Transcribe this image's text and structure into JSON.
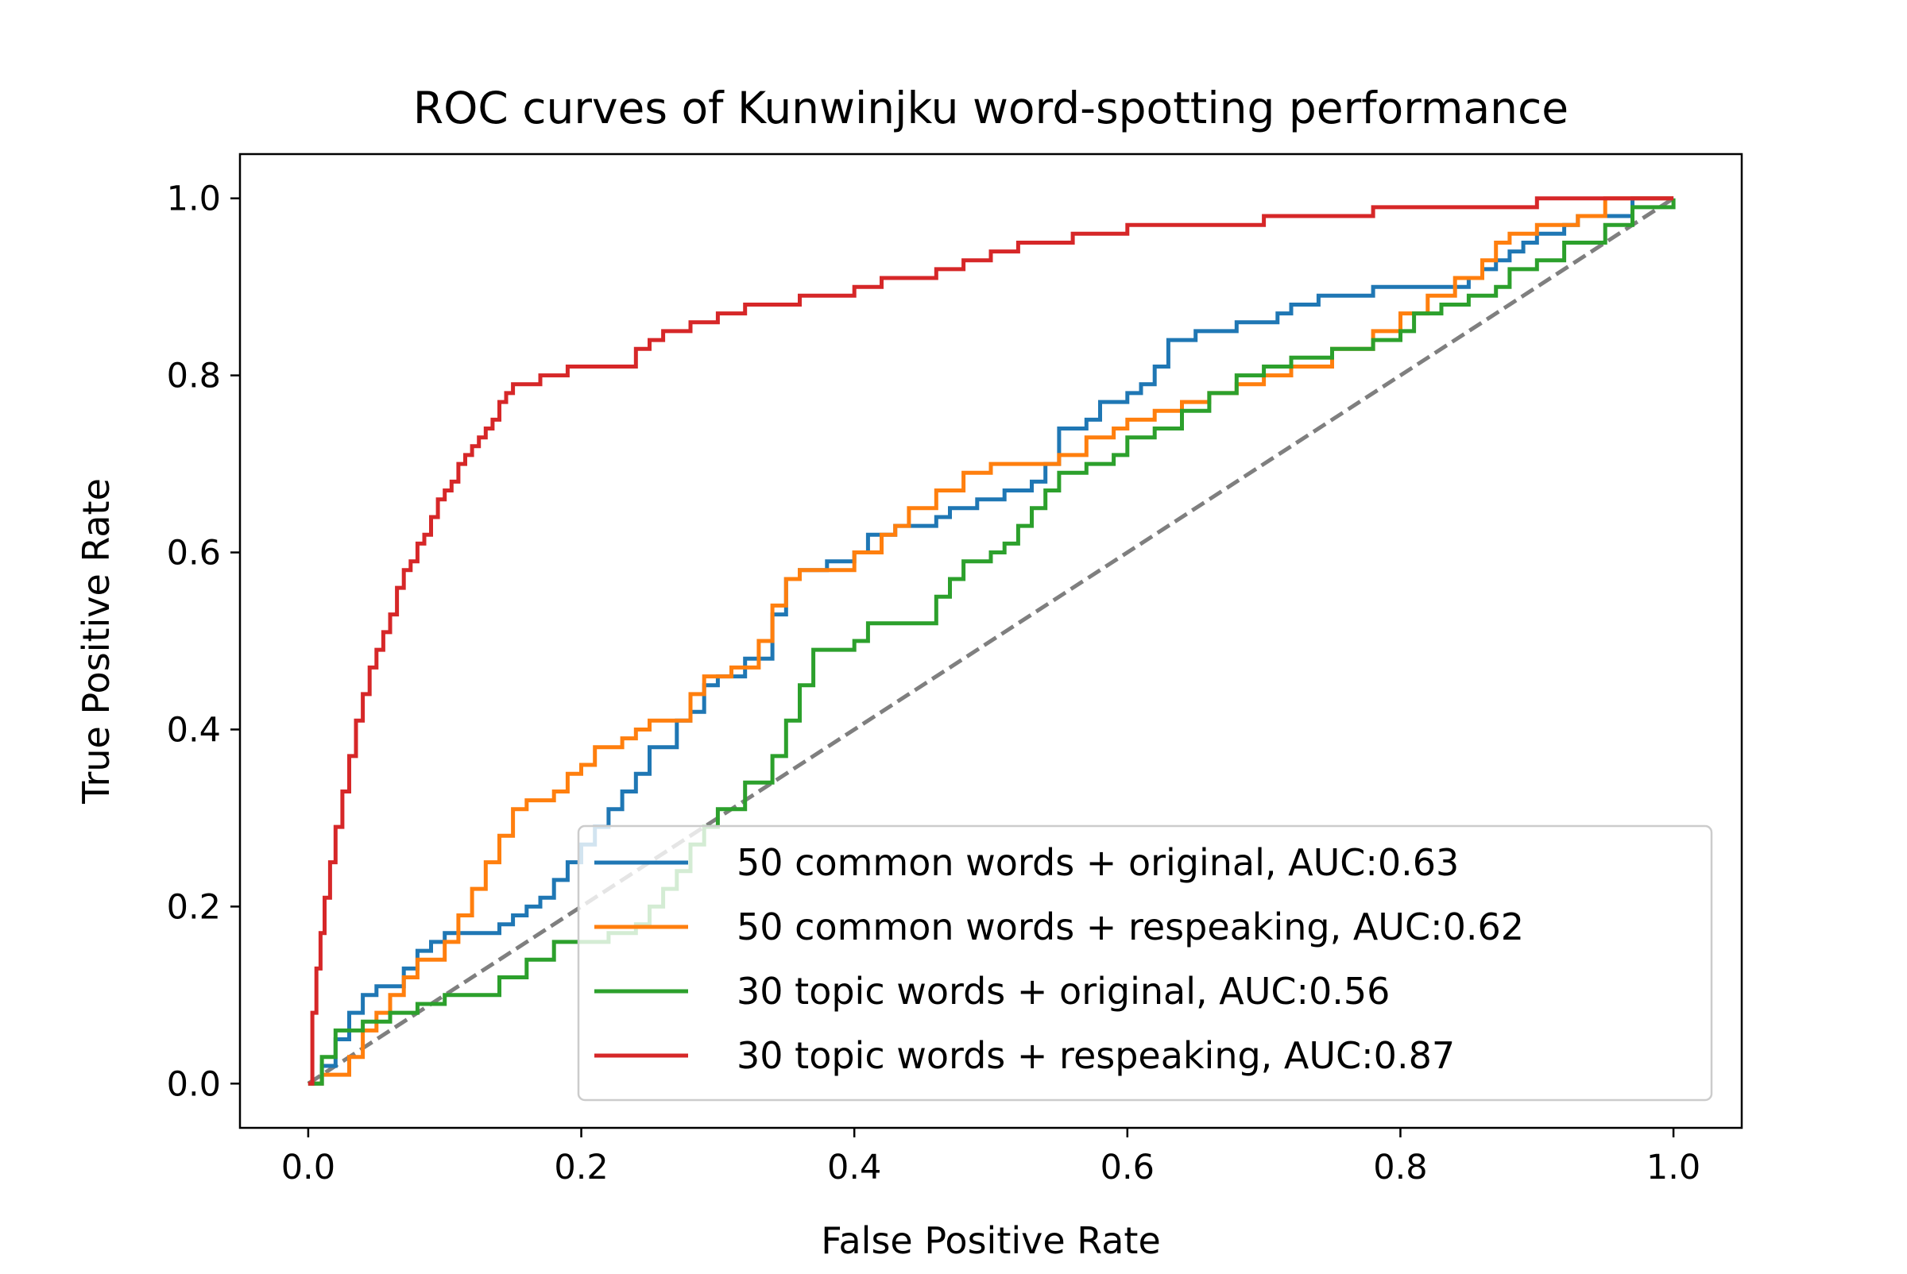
{
  "chart_data": {
    "type": "line",
    "title": "ROC curves of Kunwinjku word-spotting performance",
    "xlabel": "False Positive Rate",
    "ylabel": "True Positive Rate",
    "xlim": [
      -0.05,
      1.05
    ],
    "ylim": [
      -0.05,
      1.05
    ],
    "xticks": [
      "0.0",
      "0.2",
      "0.4",
      "0.6",
      "0.8",
      "1.0"
    ],
    "yticks": [
      "0.0",
      "0.2",
      "0.4",
      "0.6",
      "0.8",
      "1.0"
    ],
    "grid": false,
    "legend_position": "lower-right",
    "diagonal": {
      "x": [
        0,
        1
      ],
      "y": [
        0,
        1
      ],
      "color": "#7f7f7f",
      "style": "dashed"
    },
    "series": [
      {
        "name": "50 common words + original, AUC:0.63",
        "color": "#1f77b4",
        "x": [
          0,
          0.01,
          0.02,
          0.03,
          0.04,
          0.05,
          0.07,
          0.08,
          0.09,
          0.1,
          0.12,
          0.14,
          0.15,
          0.16,
          0.17,
          0.18,
          0.19,
          0.2,
          0.21,
          0.22,
          0.23,
          0.24,
          0.25,
          0.27,
          0.28,
          0.29,
          0.3,
          0.32,
          0.34,
          0.35,
          0.36,
          0.38,
          0.4,
          0.41,
          0.43,
          0.45,
          0.46,
          0.47,
          0.49,
          0.51,
          0.53,
          0.54,
          0.55,
          0.57,
          0.58,
          0.6,
          0.61,
          0.62,
          0.63,
          0.65,
          0.68,
          0.71,
          0.72,
          0.74,
          0.78,
          0.8,
          0.83,
          0.84,
          0.85,
          0.86,
          0.87,
          0.88,
          0.89,
          0.9,
          0.92,
          0.93,
          0.97,
          1.0
        ],
        "y": [
          0,
          0.02,
          0.05,
          0.08,
          0.1,
          0.11,
          0.13,
          0.15,
          0.16,
          0.17,
          0.17,
          0.18,
          0.19,
          0.2,
          0.21,
          0.23,
          0.25,
          0.27,
          0.29,
          0.31,
          0.33,
          0.35,
          0.38,
          0.41,
          0.42,
          0.45,
          0.46,
          0.48,
          0.53,
          0.57,
          0.58,
          0.59,
          0.6,
          0.62,
          0.63,
          0.63,
          0.64,
          0.65,
          0.66,
          0.67,
          0.68,
          0.7,
          0.74,
          0.75,
          0.77,
          0.78,
          0.79,
          0.81,
          0.84,
          0.85,
          0.86,
          0.87,
          0.88,
          0.89,
          0.9,
          0.9,
          0.9,
          0.9,
          0.91,
          0.92,
          0.93,
          0.94,
          0.95,
          0.96,
          0.97,
          0.98,
          1.0,
          1.0
        ]
      },
      {
        "name": "50 common words + respeaking, AUC:0.62",
        "color": "#ff7f0e",
        "x": [
          0,
          0.01,
          0.03,
          0.04,
          0.05,
          0.06,
          0.07,
          0.08,
          0.1,
          0.11,
          0.12,
          0.13,
          0.14,
          0.15,
          0.16,
          0.18,
          0.19,
          0.2,
          0.21,
          0.22,
          0.23,
          0.24,
          0.25,
          0.28,
          0.29,
          0.31,
          0.33,
          0.34,
          0.35,
          0.36,
          0.37,
          0.4,
          0.42,
          0.43,
          0.44,
          0.46,
          0.48,
          0.5,
          0.53,
          0.55,
          0.57,
          0.59,
          0.6,
          0.62,
          0.64,
          0.66,
          0.68,
          0.7,
          0.72,
          0.75,
          0.78,
          0.8,
          0.82,
          0.84,
          0.86,
          0.87,
          0.88,
          0.9,
          0.92,
          0.93,
          0.95,
          1.0
        ],
        "y": [
          0,
          0.01,
          0.03,
          0.06,
          0.08,
          0.1,
          0.12,
          0.14,
          0.16,
          0.19,
          0.22,
          0.25,
          0.28,
          0.31,
          0.32,
          0.33,
          0.35,
          0.36,
          0.38,
          0.38,
          0.39,
          0.4,
          0.41,
          0.44,
          0.46,
          0.47,
          0.5,
          0.54,
          0.57,
          0.58,
          0.58,
          0.6,
          0.62,
          0.63,
          0.65,
          0.67,
          0.69,
          0.7,
          0.7,
          0.71,
          0.73,
          0.74,
          0.75,
          0.76,
          0.77,
          0.78,
          0.79,
          0.8,
          0.81,
          0.83,
          0.85,
          0.87,
          0.89,
          0.91,
          0.93,
          0.95,
          0.96,
          0.97,
          0.97,
          0.98,
          1.0,
          1.0
        ]
      },
      {
        "name": "30 topic words + original, AUC:0.56",
        "color": "#2ca02c",
        "x": [
          0,
          0.01,
          0.02,
          0.04,
          0.06,
          0.08,
          0.1,
          0.13,
          0.14,
          0.16,
          0.18,
          0.2,
          0.22,
          0.24,
          0.25,
          0.26,
          0.27,
          0.28,
          0.29,
          0.3,
          0.32,
          0.34,
          0.35,
          0.36,
          0.37,
          0.39,
          0.4,
          0.41,
          0.44,
          0.46,
          0.47,
          0.48,
          0.5,
          0.51,
          0.52,
          0.53,
          0.54,
          0.55,
          0.57,
          0.59,
          0.6,
          0.62,
          0.64,
          0.66,
          0.68,
          0.7,
          0.72,
          0.75,
          0.78,
          0.8,
          0.81,
          0.83,
          0.85,
          0.87,
          0.88,
          0.9,
          0.92,
          0.95,
          0.97,
          1.0
        ],
        "y": [
          0,
          0.03,
          0.06,
          0.07,
          0.08,
          0.09,
          0.1,
          0.1,
          0.12,
          0.14,
          0.16,
          0.16,
          0.17,
          0.18,
          0.2,
          0.22,
          0.24,
          0.27,
          0.29,
          0.31,
          0.34,
          0.37,
          0.41,
          0.45,
          0.49,
          0.49,
          0.5,
          0.52,
          0.52,
          0.55,
          0.57,
          0.59,
          0.6,
          0.61,
          0.63,
          0.65,
          0.67,
          0.69,
          0.7,
          0.71,
          0.73,
          0.74,
          0.76,
          0.78,
          0.8,
          0.81,
          0.82,
          0.83,
          0.84,
          0.85,
          0.87,
          0.88,
          0.89,
          0.9,
          0.92,
          0.93,
          0.95,
          0.97,
          0.99,
          1.0
        ]
      },
      {
        "name": "30 topic words + respeaking, AUC:0.87",
        "color": "#d62728",
        "x": [
          0,
          0.003,
          0.006,
          0.009,
          0.012,
          0.016,
          0.02,
          0.025,
          0.03,
          0.035,
          0.04,
          0.045,
          0.05,
          0.055,
          0.06,
          0.065,
          0.07,
          0.075,
          0.08,
          0.085,
          0.09,
          0.095,
          0.1,
          0.105,
          0.11,
          0.115,
          0.12,
          0.125,
          0.13,
          0.135,
          0.14,
          0.145,
          0.15,
          0.16,
          0.17,
          0.18,
          0.19,
          0.2,
          0.22,
          0.24,
          0.25,
          0.26,
          0.28,
          0.3,
          0.32,
          0.34,
          0.36,
          0.38,
          0.4,
          0.42,
          0.44,
          0.46,
          0.48,
          0.5,
          0.52,
          0.54,
          0.56,
          0.58,
          0.6,
          0.62,
          0.66,
          0.7,
          0.74,
          0.78,
          0.82,
          0.86,
          0.9,
          0.91,
          0.95,
          1.0
        ],
        "y": [
          0,
          0.08,
          0.13,
          0.17,
          0.21,
          0.25,
          0.29,
          0.33,
          0.37,
          0.41,
          0.44,
          0.47,
          0.49,
          0.51,
          0.53,
          0.56,
          0.58,
          0.59,
          0.61,
          0.62,
          0.64,
          0.66,
          0.67,
          0.68,
          0.7,
          0.71,
          0.72,
          0.73,
          0.74,
          0.75,
          0.77,
          0.78,
          0.79,
          0.79,
          0.8,
          0.8,
          0.81,
          0.81,
          0.81,
          0.83,
          0.84,
          0.85,
          0.86,
          0.87,
          0.88,
          0.88,
          0.89,
          0.89,
          0.9,
          0.91,
          0.91,
          0.92,
          0.93,
          0.94,
          0.95,
          0.95,
          0.96,
          0.96,
          0.97,
          0.97,
          0.97,
          0.98,
          0.98,
          0.99,
          0.99,
          0.99,
          1.0,
          1.0,
          1.0,
          1.0
        ]
      }
    ]
  }
}
